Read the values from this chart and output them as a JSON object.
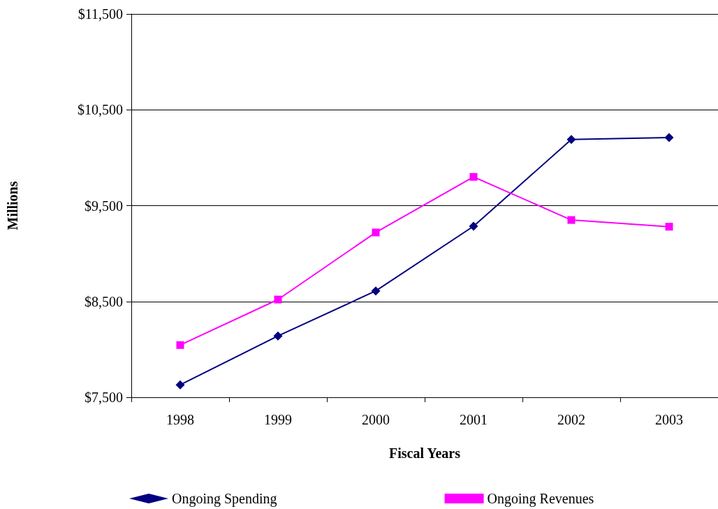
{
  "chart_data": {
    "type": "line",
    "xlabel": "Fiscal Years",
    "ylabel": "Millions",
    "categories": [
      "1998",
      "1999",
      "2000",
      "2001",
      "2002",
      "2003"
    ],
    "series": [
      {
        "name": "Ongoing Spending",
        "color": "#000080",
        "marker": "diamond",
        "values": [
          7630,
          8140,
          8610,
          9285,
          10190,
          10210
        ]
      },
      {
        "name": "Ongoing Revenues",
        "color": "#ff00ff",
        "marker": "square",
        "values": [
          8045,
          8520,
          9220,
          9800,
          9350,
          9280
        ]
      }
    ],
    "ylim": [
      7500,
      11500
    ],
    "yticks": [
      {
        "value": 7500,
        "label": "$7,500"
      },
      {
        "value": 8500,
        "label": "$8,500"
      },
      {
        "value": 9500,
        "label": "$9,500"
      },
      {
        "value": 10500,
        "label": "$10,500"
      },
      {
        "value": 11500,
        "label": "$11,500"
      }
    ],
    "grid": "y",
    "legend": "bottom",
    "line_style": "solid"
  }
}
